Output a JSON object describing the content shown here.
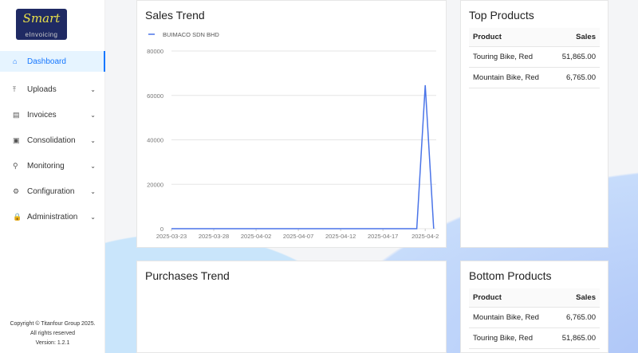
{
  "logo": {
    "text": "Smart",
    "subtext": "eInvoicing"
  },
  "sidebar": {
    "items": [
      {
        "label": "Dashboard",
        "icon": "home-icon",
        "glyph": "⌂",
        "active": true
      },
      {
        "label": "Uploads",
        "icon": "upload-icon",
        "glyph": "⤒"
      },
      {
        "label": "Invoices",
        "icon": "file-icon",
        "glyph": "▤"
      },
      {
        "label": "Consolidation",
        "icon": "container-icon",
        "glyph": "▣"
      },
      {
        "label": "Monitoring",
        "icon": "file-search-icon",
        "glyph": "⚲"
      },
      {
        "label": "Configuration",
        "icon": "gear-icon",
        "glyph": "⚙"
      },
      {
        "label": "Administration",
        "icon": "lock-icon",
        "glyph": "🔒"
      }
    ],
    "footer": {
      "copyright": "Copyright © Titanfour Group 2025.",
      "rights": "All rights reserved",
      "version": "Version: 1.2.1"
    }
  },
  "sales_trend": {
    "title": "Sales Trend"
  },
  "purchases_trend": {
    "title": "Purchases Trend"
  },
  "top_products": {
    "title": "Top Products",
    "headers": [
      "Product",
      "Sales"
    ],
    "rows": [
      [
        "Touring Bike, Red",
        "51,865.00"
      ],
      [
        "Mountain Bike, Red",
        "6,765.00"
      ]
    ]
  },
  "bottom_products": {
    "title": "Bottom Products",
    "headers": [
      "Product",
      "Sales"
    ],
    "rows": [
      [
        "Mountain Bike, Red",
        "6,765.00"
      ],
      [
        "Touring Bike, Red",
        "51,865.00"
      ]
    ]
  },
  "chart_data": {
    "type": "line",
    "title": "Sales Trend",
    "legend": [
      "BUIMACO SDN BHD"
    ],
    "legend_position": "top-left",
    "color": "#4a74e8",
    "start_date": "2025-03-23",
    "days": 32,
    "tick_labels": [
      "2025-03-23",
      "2025-03-28",
      "2025-04-02",
      "2025-04-07",
      "2025-04-12",
      "2025-04-17",
      "2025-04-2"
    ],
    "series": [
      {
        "name": "BUIMACO SDN BHD",
        "nonzero": {
          "2025-04-22": 64600
        }
      }
    ],
    "yticks": [
      0,
      20000,
      40000,
      60000,
      80000
    ],
    "ylim": [
      0,
      80000
    ],
    "grid": true
  }
}
